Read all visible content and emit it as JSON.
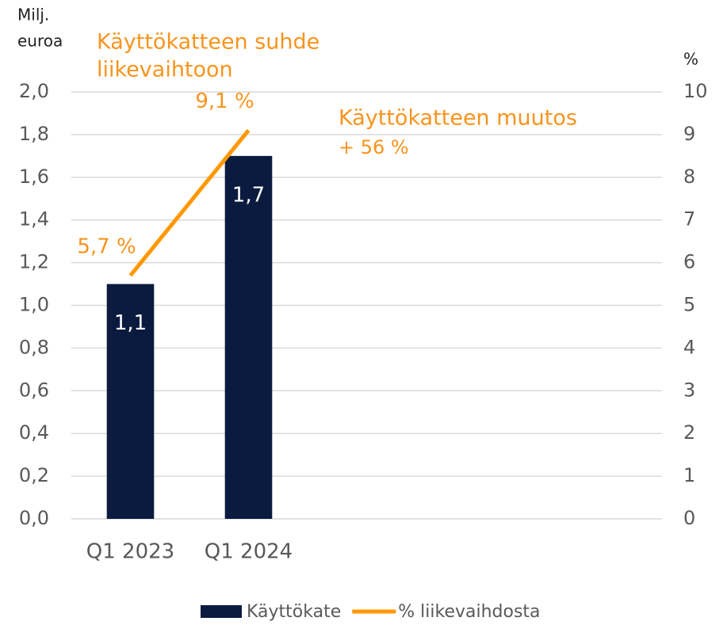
{
  "chart_data": {
    "type": "bar",
    "y_label": [
      "Milj.",
      "euroa"
    ],
    "y2_label": "%",
    "annotations": [
      [
        "Käyttökatteen suhde",
        "liikevaihtoon"
      ],
      [
        "Käyttökatteen  muutos",
        "+ 56 %"
      ]
    ],
    "categories": [
      "Q1 2023",
      "Q1 2024",
      null,
      null,
      null
    ],
    "series": [
      {
        "name": "Käyttökate",
        "type": "bar",
        "color": "#0b1a3f",
        "values": [
          1.1,
          1.7,
          null,
          null,
          null
        ],
        "value_labels": [
          "1,1",
          "1,7",
          null,
          null,
          null
        ]
      },
      {
        "name": "% liikevaihdosta",
        "type": "line",
        "axis": "y2",
        "color": "#ff9800",
        "values": [
          5.7,
          9.1,
          null,
          null,
          null
        ],
        "value_labels": [
          "5,7 %",
          "9,1 %",
          null,
          null,
          null
        ]
      }
    ],
    "ylim": [
      0,
      2
    ],
    "yticks": [
      {
        "value": 0,
        "label": "0,0"
      },
      {
        "value": 0.2,
        "label": "0,2"
      },
      {
        "value": 0.4,
        "label": "0,4"
      },
      {
        "value": 0.6,
        "label": "0,6"
      },
      {
        "value": 0.8,
        "label": "0,8"
      },
      {
        "value": 1.0,
        "label": "1,0"
      },
      {
        "value": 1.2,
        "label": "1,2"
      },
      {
        "value": 1.4,
        "label": "1,4"
      },
      {
        "value": 1.6,
        "label": "1,6"
      },
      {
        "value": 1.8,
        "label": "1,8"
      },
      {
        "value": 2.0,
        "label": "2,0"
      }
    ],
    "y2lim": [
      0,
      10
    ],
    "y2ticks": [
      0,
      1,
      2,
      3,
      4,
      5,
      6,
      7,
      8,
      9,
      10
    ],
    "grid": true
  }
}
